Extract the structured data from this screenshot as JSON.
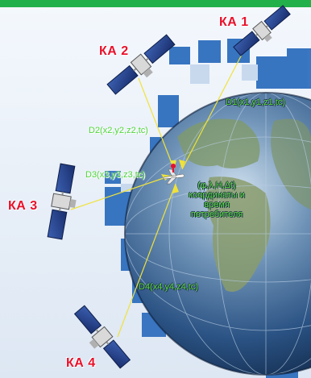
{
  "satellites": [
    {
      "id": "ka1",
      "label": "КА 1"
    },
    {
      "id": "ka2",
      "label": "КА 2"
    },
    {
      "id": "ka3",
      "label": "КА 3"
    },
    {
      "id": "ka4",
      "label": "КА 4"
    }
  ],
  "ranges": {
    "d1": "D1(x1,y1,z1,tc)",
    "d2": "D2(x2,y2,z2,tc)",
    "d3": "D3(x3,y3,z3,tc)",
    "d4": "D4(x4,y4,z4,tc)"
  },
  "consumer": {
    "params": "(φ,λ,H,Δt)",
    "line1": "координаты и",
    "line2": "время",
    "line3": "потребителя"
  },
  "colors": {
    "label_red": "#e8102a",
    "text_green": "#5bdc3a",
    "signal_line": "#f0e23a",
    "top_bar": "#22b04a",
    "grid_blue": "#2f6fbe",
    "ocean": "#1d4f8f"
  }
}
